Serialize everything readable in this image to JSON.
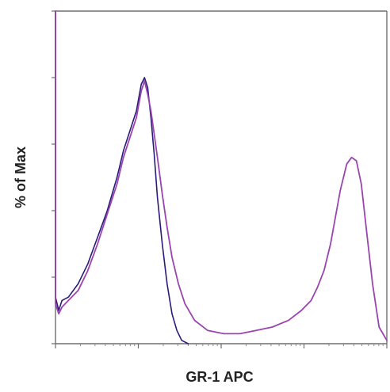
{
  "chart_data": {
    "type": "line",
    "title": "",
    "xlabel": "GR-1 APC",
    "ylabel": "% of Max",
    "xlim": [
      0,
      1024
    ],
    "ylim": [
      0,
      100
    ],
    "grid": false,
    "legend": "none",
    "series": [
      {
        "color": "#2a1a7a",
        "x": [
          0,
          10,
          20,
          40,
          70,
          100,
          130,
          160,
          190,
          210,
          230,
          250,
          265,
          275,
          285,
          295,
          305,
          315,
          330,
          345,
          360,
          375,
          390,
          410
        ],
        "y": [
          14,
          10,
          13,
          14,
          18,
          24,
          32,
          40,
          50,
          58,
          64,
          70,
          78,
          80,
          77,
          68,
          57,
          44,
          30,
          18,
          9,
          4,
          1,
          0
        ]
      },
      {
        "color": "#9a44b0",
        "x": [
          0,
          10,
          20,
          40,
          70,
          100,
          130,
          160,
          190,
          210,
          230,
          250,
          265,
          275,
          285,
          295,
          305,
          315,
          330,
          345,
          360,
          380,
          400,
          430,
          470,
          520,
          570,
          620,
          670,
          720,
          760,
          790,
          810,
          830,
          850,
          865,
          880,
          900,
          915,
          930,
          945,
          960,
          980,
          1000,
          1024
        ],
        "y": [
          12,
          9,
          11,
          13,
          16,
          22,
          30,
          39,
          48,
          56,
          62,
          68,
          76,
          79,
          75,
          70,
          63,
          56,
          45,
          35,
          26,
          18,
          12,
          7,
          4,
          3,
          3,
          4,
          5,
          7,
          10,
          13,
          17,
          22,
          30,
          38,
          46,
          54,
          56,
          55,
          48,
          35,
          18,
          5,
          1
        ]
      }
    ]
  }
}
